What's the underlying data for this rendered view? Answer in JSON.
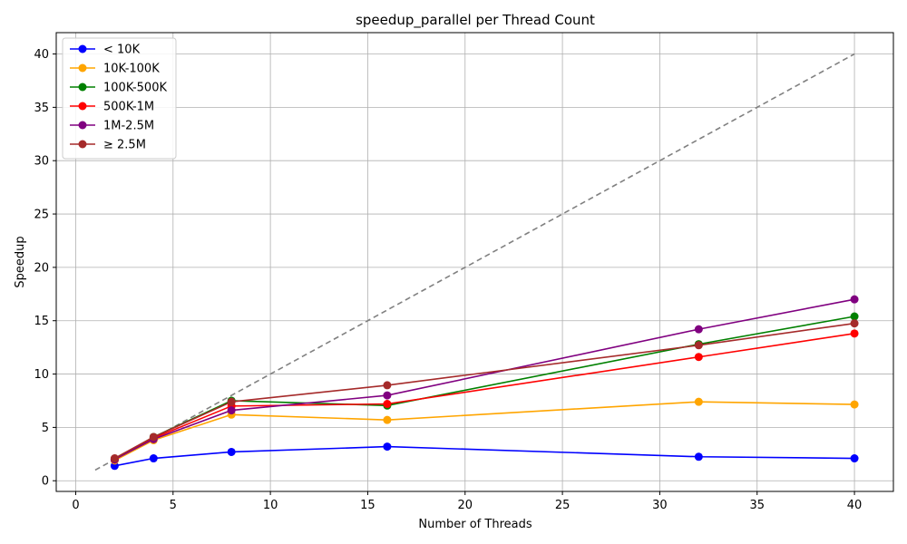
{
  "chart_data": {
    "type": "line",
    "title": "speedup_parallel per Thread Count",
    "xlabel": "Number of Threads",
    "ylabel": "Speedup",
    "xlim": [
      -1,
      42
    ],
    "ylim": [
      -1,
      42
    ],
    "xticks": [
      0,
      5,
      10,
      15,
      20,
      25,
      30,
      35,
      40
    ],
    "yticks": [
      0,
      5,
      10,
      15,
      20,
      25,
      30,
      35,
      40
    ],
    "grid": true,
    "legend_position": "top-left",
    "x": [
      2,
      4,
      8,
      16,
      32,
      40
    ],
    "series": [
      {
        "name": "< 10K",
        "color": "#0000ff",
        "values": [
          1.4,
          2.1,
          2.7,
          3.2,
          2.25,
          2.1
        ]
      },
      {
        "name": "10K-100K",
        "color": "#ffa500",
        "values": [
          1.9,
          3.8,
          6.2,
          5.7,
          7.4,
          7.15
        ]
      },
      {
        "name": "100K-500K",
        "color": "#008000",
        "values": [
          2.0,
          4.1,
          7.5,
          7.05,
          12.8,
          15.4
        ]
      },
      {
        "name": "500K-1M",
        "color": "#ff0000",
        "values": [
          2.0,
          4.0,
          7.0,
          7.2,
          11.6,
          13.8
        ]
      },
      {
        "name": "1M-2.5M",
        "color": "#800080",
        "values": [
          2.0,
          3.9,
          6.6,
          8.0,
          14.2,
          17.0
        ]
      },
      {
        "name": "≥ 2.5M",
        "color": "#a52a2a",
        "values": [
          2.1,
          4.1,
          7.4,
          8.95,
          12.7,
          14.75
        ]
      }
    ],
    "reference_line": {
      "style": "dashed",
      "color": "#808080",
      "x": [
        1,
        40
      ],
      "y": [
        1,
        40
      ]
    }
  }
}
